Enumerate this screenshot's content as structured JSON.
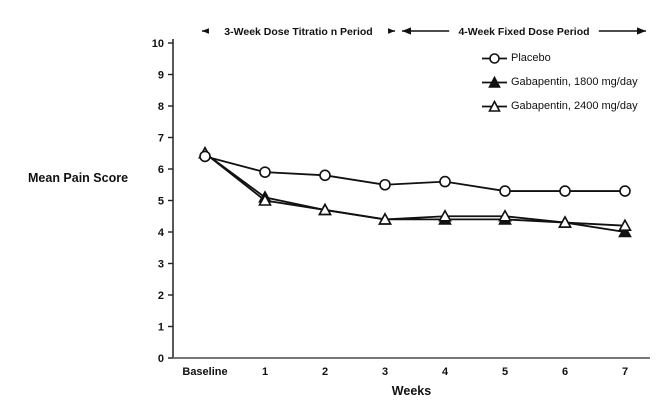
{
  "chart_data": {
    "type": "line",
    "title": "",
    "xlabel": "Weeks",
    "ylabel": "Mean Pain Score",
    "ylim": [
      0,
      10
    ],
    "ytick_step": 1,
    "categories": [
      "Baseline",
      "1",
      "2",
      "3",
      "4",
      "5",
      "6",
      "7"
    ],
    "grid": false,
    "legend_position": "inside-top-right",
    "series": [
      {
        "name": "Placebo",
        "marker": "circle-open",
        "values": [
          6.4,
          5.9,
          5.8,
          5.5,
          5.6,
          5.3,
          5.3,
          5.3
        ]
      },
      {
        "name": "Gabapentin, 1800 mg/day",
        "marker": "triangle-filled",
        "values": [
          6.5,
          5.1,
          4.7,
          4.4,
          4.4,
          4.4,
          4.3,
          4.0
        ]
      },
      {
        "name": "Gabapentin, 2400 mg/day",
        "marker": "triangle-open",
        "values": [
          6.5,
          5.0,
          4.7,
          4.4,
          4.5,
          4.5,
          4.3,
          4.2
        ]
      }
    ],
    "annotations": [
      {
        "label": "3-Week Dose Titratio n Period",
        "from_category": "Baseline",
        "to_category": "3"
      },
      {
        "label": "4-Week Fixed Dose Period",
        "from_category": "3",
        "to_category": "7"
      }
    ],
    "colors": {
      "line": "#111111",
      "marker_open_fill": "#ffffff",
      "marker_filled_fill": "#111111",
      "y_axis": "#222222",
      "x_axis": "#777777",
      "background": "#ffffff",
      "text": "#111111"
    }
  }
}
